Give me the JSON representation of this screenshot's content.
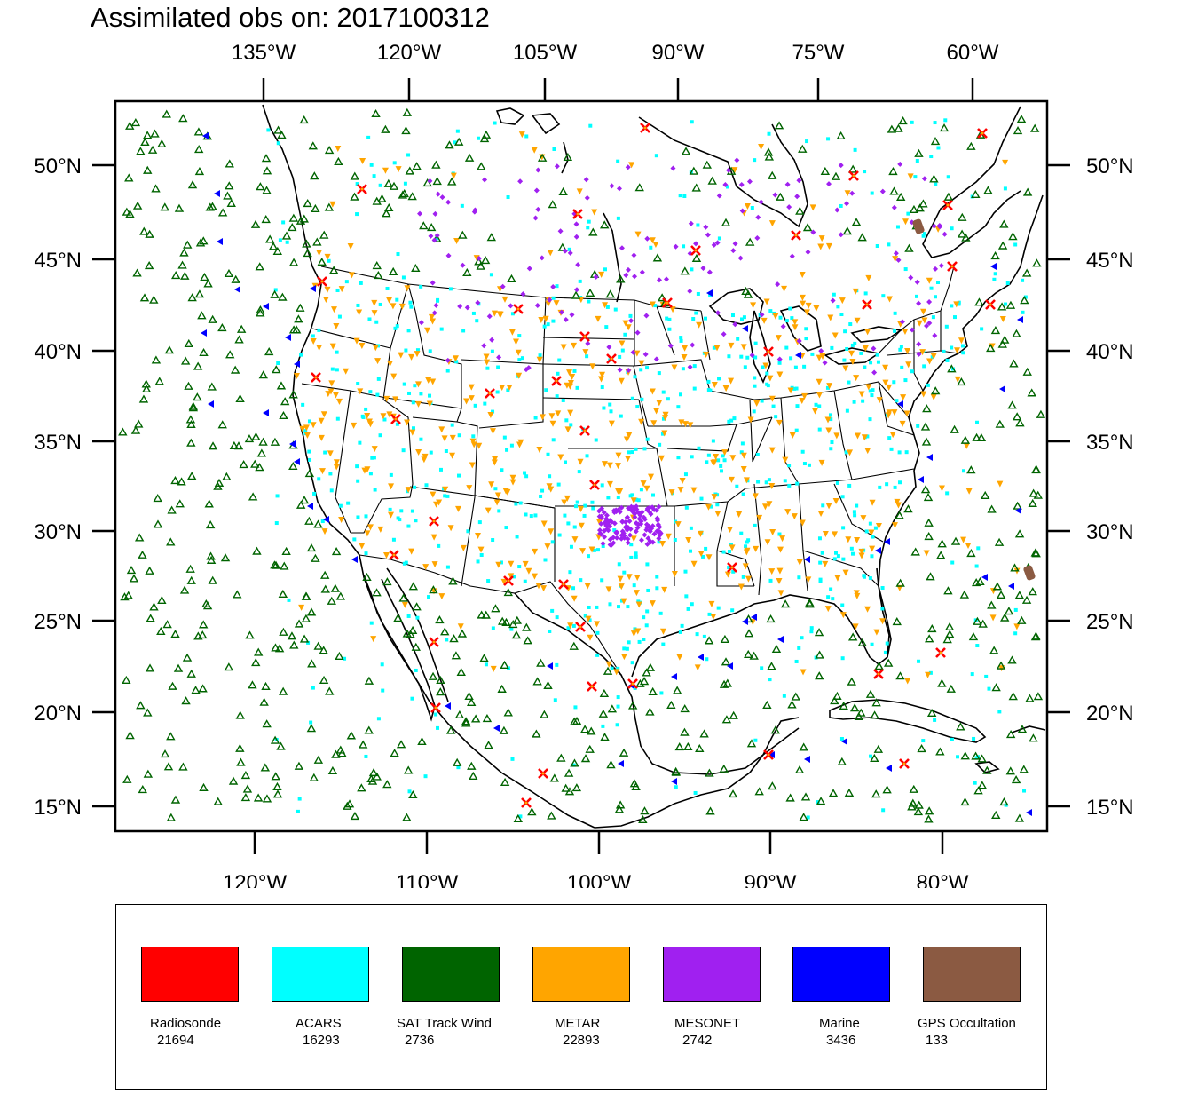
{
  "title": "Assimilated obs on: 2017100312",
  "top_axis": [
    "135°W",
    "120°W",
    "105°W",
    "90°W",
    "75°W",
    "60°W"
  ],
  "bottom_axis": [
    "120°W",
    "110°W",
    "100°W",
    "90°W",
    "80°W"
  ],
  "left_axis": [
    "50°N",
    "45°N",
    "40°N",
    "35°N",
    "30°N",
    "25°N",
    "20°N",
    "15°N"
  ],
  "right_axis": [
    "50°N",
    "45°N",
    "40°N",
    "35°N",
    "30°N",
    "25°N",
    "20°N",
    "15°N"
  ],
  "legend": [
    {
      "name": "Radiosonde",
      "count": "21694",
      "color": "#ff0000"
    },
    {
      "name": "ACARS",
      "count": "16293",
      "color": "#00ffff"
    },
    {
      "name": "SAT Track Wind",
      "count": "2736",
      "color": "#006400"
    },
    {
      "name": "METAR",
      "count": "22893",
      "color": "#ffa500"
    },
    {
      "name": "MESONET",
      "count": "2742",
      "color": "#a020f0"
    },
    {
      "name": "Marine",
      "count": "3436",
      "color": "#0000ff"
    },
    {
      "name": "GPS Occultation",
      "count": "133",
      "color": "#8b5a42"
    }
  ]
}
